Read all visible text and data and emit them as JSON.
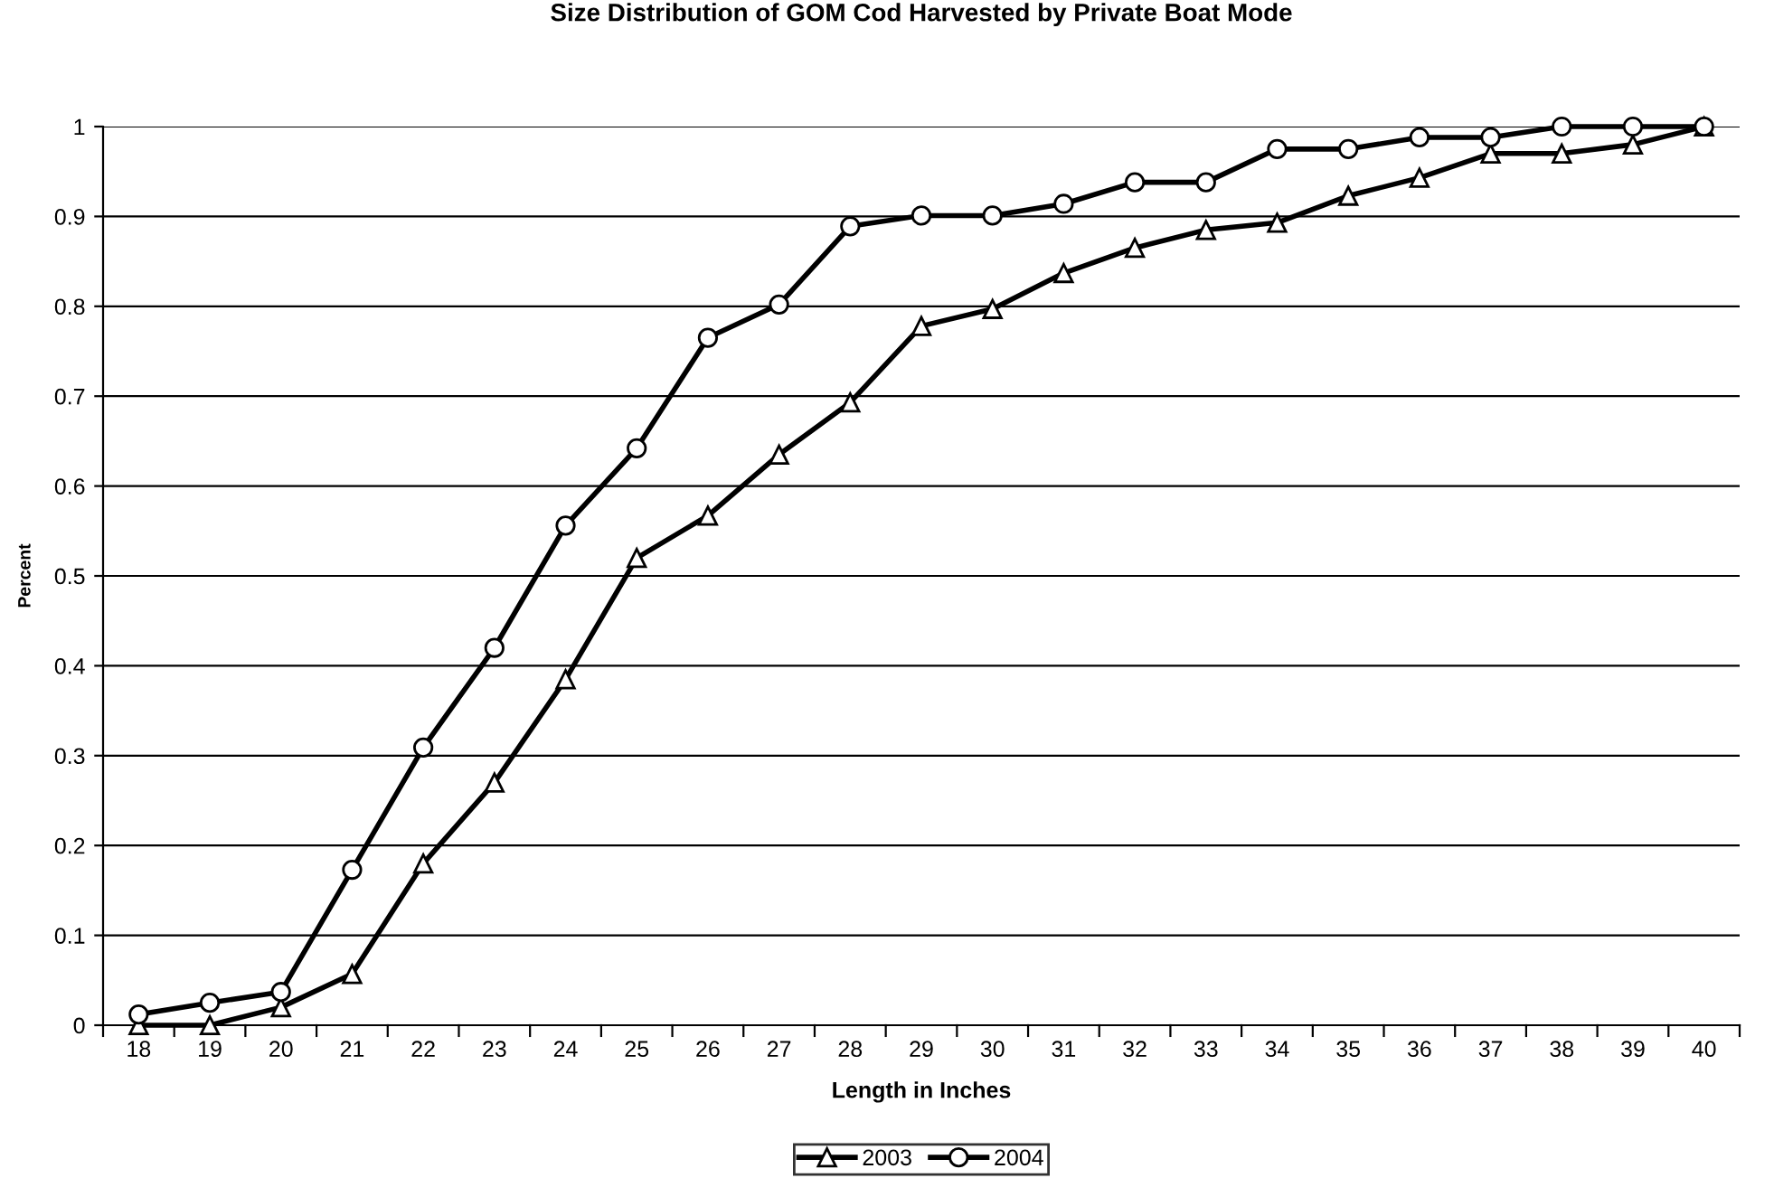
{
  "chart_data": {
    "type": "line",
    "title": "Size Distribution of GOM Cod Harvested by Private Boat Mode",
    "xlabel": "Length in Inches",
    "ylabel": "Percent",
    "categories": [
      "18",
      "19",
      "20",
      "21",
      "22",
      "23",
      "24",
      "25",
      "26",
      "27",
      "28",
      "29",
      "30",
      "31",
      "32",
      "33",
      "34",
      "35",
      "36",
      "37",
      "38",
      "39",
      "40"
    ],
    "series": [
      {
        "name": "2003",
        "color": "#000000",
        "marker": "triangle",
        "values": [
          0,
          0,
          0.02,
          0.057,
          0.18,
          0.27,
          0.385,
          0.52,
          0.567,
          0.635,
          0.693,
          0.778,
          0.797,
          0.837,
          0.865,
          0.885,
          0.893,
          0.923,
          0.943,
          0.97,
          0.97,
          0.98,
          1.0
        ]
      },
      {
        "name": "2004",
        "color": "#000000",
        "marker": "circle",
        "values": [
          0.012,
          0.025,
          0.037,
          0.173,
          0.309,
          0.42,
          0.556,
          0.642,
          0.765,
          0.802,
          0.889,
          0.901,
          0.901,
          0.914,
          0.938,
          0.938,
          0.975,
          0.975,
          0.988,
          0.988,
          1.0,
          1.0,
          1.0
        ]
      }
    ],
    "ylim": [
      0,
      1
    ],
    "yticks": [
      0,
      0.1,
      0.2,
      0.3,
      0.4,
      0.5,
      0.6,
      0.7,
      0.8,
      0.9,
      1
    ],
    "grid": "y",
    "legend": "bottom",
    "line_style": "solid"
  }
}
